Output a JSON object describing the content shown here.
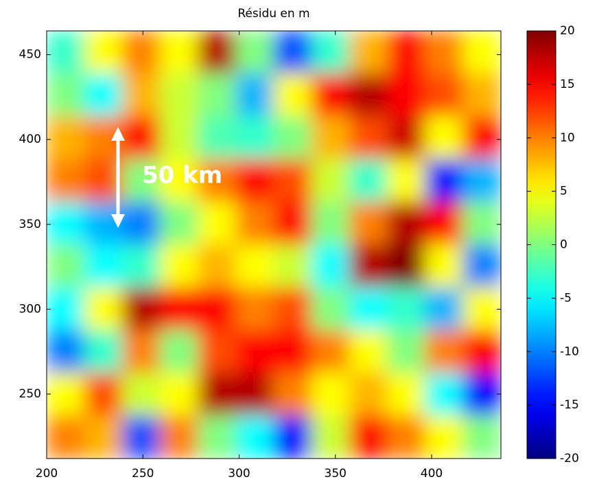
{
  "chart_data": {
    "type": "heatmap",
    "title": "Résidu en m",
    "xlim": [
      200,
      436
    ],
    "xticks": [
      200,
      250,
      300,
      350,
      400
    ],
    "ylim": [
      212,
      464
    ],
    "yticks": [
      250,
      300,
      350,
      400,
      450
    ],
    "colormap": "jet",
    "clim": [
      -20,
      20
    ],
    "cticks": [
      20,
      15,
      10,
      5,
      0,
      -5,
      -10,
      -15,
      -20
    ],
    "annotation": "50 km",
    "z": [
      [
        -3,
        5,
        10,
        5,
        18,
        0,
        -12,
        -3,
        8,
        15,
        10,
        5
      ],
      [
        0,
        -5,
        8,
        3,
        0,
        -8,
        5,
        15,
        18,
        15,
        12,
        8
      ],
      [
        8,
        10,
        15,
        3,
        -2,
        -3,
        0,
        8,
        12,
        17,
        5,
        15
      ],
      [
        10,
        12,
        0,
        5,
        10,
        15,
        12,
        3,
        -3,
        5,
        -15,
        -8
      ],
      [
        -5,
        -8,
        -10,
        0,
        5,
        10,
        15,
        0,
        10,
        18,
        15,
        0
      ],
      [
        0,
        -5,
        -3,
        5,
        8,
        5,
        3,
        -5,
        18,
        20,
        5,
        -10
      ],
      [
        -5,
        5,
        18,
        15,
        15,
        10,
        12,
        0,
        -5,
        -3,
        -8,
        5
      ],
      [
        -10,
        -3,
        10,
        0,
        12,
        15,
        15,
        10,
        5,
        0,
        10,
        15
      ],
      [
        5,
        12,
        3,
        5,
        18,
        18,
        10,
        5,
        8,
        5,
        -5,
        -15
      ],
      [
        10,
        8,
        -12,
        10,
        0,
        -5,
        -15,
        3,
        15,
        10,
        5,
        0
      ]
    ]
  }
}
